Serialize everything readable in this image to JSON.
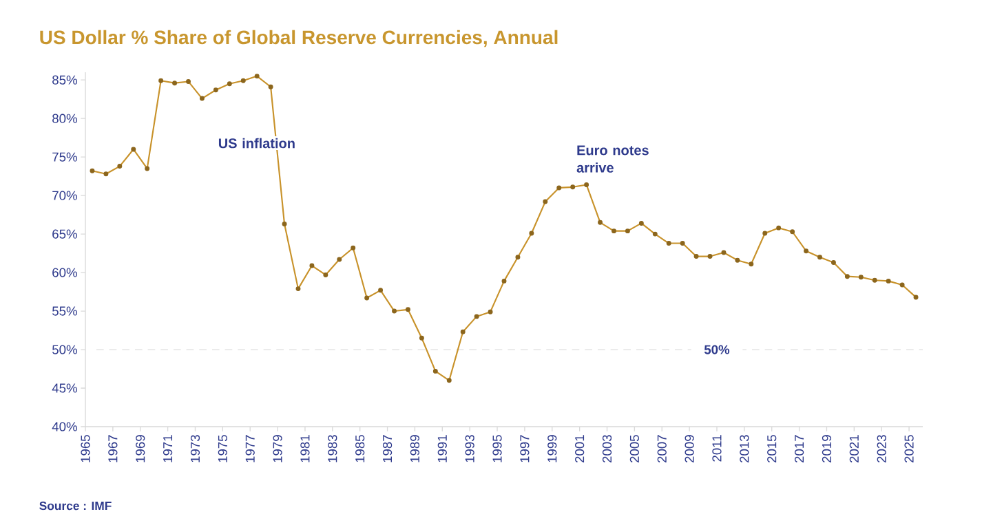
{
  "chart_data": {
    "type": "line",
    "title": "US Dollar % Share of Global Reserve Currencies, Annual",
    "x": [
      1965.5,
      1966.5,
      1967.5,
      1968.5,
      1969.5,
      1970.5,
      1971.5,
      1972.5,
      1973.5,
      1974.5,
      1975.5,
      1976.5,
      1977.5,
      1978.5,
      1979.5,
      1980.5,
      1981.5,
      1982.5,
      1983.5,
      1984.5,
      1985.5,
      1986.5,
      1987.5,
      1988.5,
      1989.5,
      1990.5,
      1991.5,
      1992.5,
      1993.5,
      1994.5,
      1995.5,
      1996.5,
      1997.5,
      1998.5,
      1999.5,
      2000.5,
      2001.5,
      2002.5,
      2003.5,
      2004.5,
      2005.5,
      2006.5,
      2007.5,
      2008.5,
      2009.5,
      2010.5,
      2011.5,
      2012.5,
      2013.5,
      2014.5,
      2015.5,
      2016.5,
      2017.5,
      2018.5,
      2019.5,
      2020.5,
      2021.5,
      2022.5,
      2023.5,
      2024.5,
      2025.5
    ],
    "series": [
      {
        "color": "#c8922a",
        "values": [
          73.2,
          72.8,
          73.8,
          76.0,
          73.5,
          84.9,
          84.6,
          84.8,
          82.6,
          83.7,
          84.5,
          84.9,
          85.5,
          84.1,
          66.3,
          57.9,
          60.9,
          59.7,
          61.7,
          63.2,
          56.7,
          57.7,
          55.0,
          55.2,
          51.5,
          47.2,
          46.0,
          52.3,
          54.3,
          54.9,
          58.9,
          62.0,
          65.1,
          69.2,
          71.0,
          71.1,
          71.4,
          66.5,
          65.4,
          65.4,
          66.4,
          65.0,
          63.8,
          63.8,
          62.1,
          62.1,
          62.6,
          61.6,
          61.1,
          65.1,
          65.8,
          65.3,
          62.8,
          62.0,
          61.3,
          59.5,
          59.4,
          59.0,
          58.9,
          58.4,
          56.8
        ]
      }
    ],
    "xlim": [
      1965,
      2026
    ],
    "xticks": [
      1965,
      1967,
      1969,
      1971,
      1973,
      1975,
      1977,
      1979,
      1981,
      1983,
      1985,
      1987,
      1989,
      1991,
      1993,
      1995,
      1997,
      1999,
      2001,
      2003,
      2005,
      2007,
      2009,
      2011,
      2013,
      2015,
      2017,
      2019,
      2021,
      2023,
      2025
    ],
    "ylim": [
      40,
      86
    ],
    "yticks": [
      {
        "value": 40,
        "label": "40%"
      },
      {
        "value": 45,
        "label": "45%"
      },
      {
        "value": 50,
        "label": "50%"
      },
      {
        "value": 55,
        "label": "55%"
      },
      {
        "value": 60,
        "label": "60%"
      },
      {
        "value": 65,
        "label": "65%"
      },
      {
        "value": 70,
        "label": "70%"
      },
      {
        "value": 75,
        "label": "75%"
      },
      {
        "value": 80,
        "label": "80%"
      },
      {
        "value": 85,
        "label": "85%"
      }
    ],
    "ref_lines": [
      {
        "axis": "y",
        "value": 50,
        "label": "50%",
        "color": "#dddddd",
        "line_style": "dashed"
      }
    ],
    "annotations": [
      "US inflation",
      "Euro notes arrive",
      "Source : IMF"
    ],
    "marker": "circle",
    "line_style": "solid",
    "grid": false
  }
}
